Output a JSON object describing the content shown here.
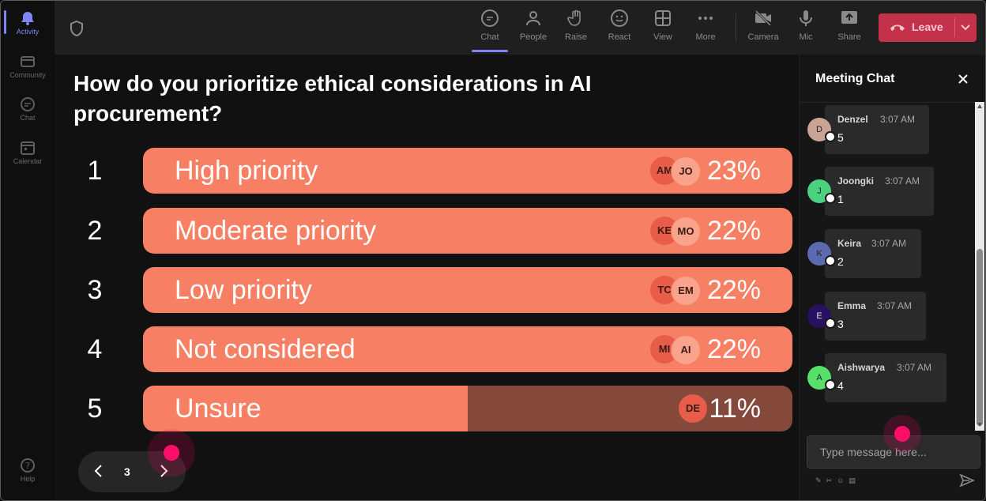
{
  "rail": {
    "items": [
      {
        "label": "Activity",
        "icon": "bell-icon",
        "active": true
      },
      {
        "label": "Community",
        "icon": "community-icon"
      },
      {
        "label": "Chat",
        "icon": "chat-icon"
      },
      {
        "label": "Calendar",
        "icon": "calendar-icon"
      }
    ],
    "help": {
      "label": "Help",
      "icon": "help-icon"
    }
  },
  "toolbar": {
    "buttons": [
      {
        "label": "Chat",
        "icon": "chat-icon",
        "active": true
      },
      {
        "label": "People",
        "icon": "people-icon"
      },
      {
        "label": "Raise",
        "icon": "raise-hand-icon"
      },
      {
        "label": "React",
        "icon": "react-icon"
      },
      {
        "label": "View",
        "icon": "view-grid-icon"
      },
      {
        "label": "More",
        "icon": "more-icon"
      },
      {
        "label": "Camera",
        "icon": "camera-off-icon"
      },
      {
        "label": "Mic",
        "icon": "mic-icon"
      },
      {
        "label": "Share",
        "icon": "share-icon"
      }
    ],
    "leave_label": "Leave",
    "colors": {
      "leave": "#c4314b",
      "accent": "#7f85f5"
    }
  },
  "poll": {
    "question": "How do you prioritize ethical considerations in AI procurement?",
    "options": [
      {
        "num": "1",
        "label": "High priority",
        "percent": "23%",
        "fill": 1.0,
        "avatars": [
          "AM",
          "JO"
        ]
      },
      {
        "num": "2",
        "label": "Moderate priority",
        "percent": "22%",
        "fill": 1.0,
        "avatars": [
          "KE",
          "MO"
        ]
      },
      {
        "num": "3",
        "label": "Low priority",
        "percent": "22%",
        "fill": 1.0,
        "avatars": [
          "TC",
          "EM"
        ]
      },
      {
        "num": "4",
        "label": "Not considered",
        "percent": "22%",
        "fill": 1.0,
        "avatars": [
          "MI",
          "AI"
        ]
      },
      {
        "num": "5",
        "label": "Unsure",
        "percent": "11%",
        "fill": 0.5,
        "avatars": [
          "DE"
        ]
      }
    ],
    "bar_color": "#f77f63",
    "page": "3"
  },
  "chat": {
    "title": "Meeting Chat",
    "messages": [
      {
        "initial": "D",
        "name": "Denzel",
        "time": "3:07 AM",
        "text": "5",
        "color": "#c9a394"
      },
      {
        "initial": "J",
        "name": "Joongki",
        "time": "3:07 AM",
        "text": "1",
        "color": "#4cd27f"
      },
      {
        "initial": "K",
        "name": "Keira",
        "time": "3:07 AM",
        "text": "2",
        "color": "#5c6bb0"
      },
      {
        "initial": "E",
        "name": "Emma",
        "time": "3:07 AM",
        "text": "3",
        "color": "#2a1060"
      },
      {
        "initial": "A",
        "name": "Aishwarya",
        "time": "3:07 AM",
        "text": "4",
        "color": "#57e06a"
      }
    ],
    "compose_placeholder": "Type message here..."
  }
}
